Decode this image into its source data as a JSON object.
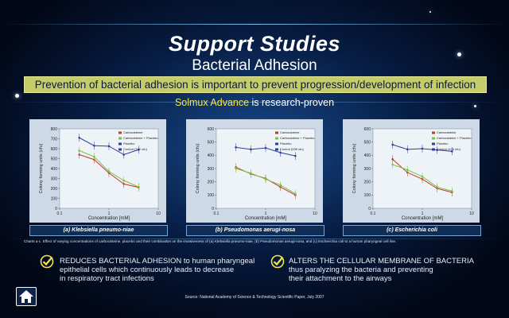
{
  "header": {
    "title": "Support Studies",
    "subtitle": "Bacterial Adhesion",
    "banner": "Prevention of bacterial adhesion is important to prevent progression/development of infection",
    "tagline_brand": "Solmux Advance",
    "tagline_rest": " is research-proven"
  },
  "chart_data": [
    {
      "type": "line",
      "title": "(a) Klebsiella pneumo-niae",
      "xlabel": "Concentration [mM]",
      "ylabel": "Colony forming units (cfu)",
      "xscale": "log",
      "xlim": [
        0.1,
        10
      ],
      "ylim": [
        0,
        800
      ],
      "yticks": [
        0,
        100,
        200,
        300,
        400,
        500,
        600,
        700,
        800
      ],
      "xticks": [
        "0.1",
        "1",
        "10"
      ],
      "legend_position": "top-right",
      "series": [
        {
          "name": "Carbocisteine",
          "color": "#c0392b",
          "x": [
            0.25,
            0.5,
            1,
            2,
            4
          ],
          "y": [
            540,
            490,
            355,
            245,
            210
          ]
        },
        {
          "name": "Carbocisteine + Placebo",
          "color": "#7cc242",
          "x": [
            0.25,
            0.5,
            1,
            2,
            4
          ],
          "y": [
            580,
            520,
            370,
            280,
            215
          ]
        },
        {
          "name": "Placebo",
          "color": "#2c3e9e",
          "x": [
            0.25,
            0.5,
            1,
            2,
            4
          ],
          "y": [
            710,
            630,
            625,
            540,
            590
          ]
        },
        {
          "name": "Control (742 cfu)",
          "color": "#2c3e9e",
          "x": [],
          "y": []
        }
      ]
    },
    {
      "type": "line",
      "title": "(b) Pseudomonas aerugi-nosa",
      "xlabel": "Concentration [mM]",
      "ylabel": "Colony forming units (cfu)",
      "xscale": "log",
      "xlim": [
        0.1,
        10
      ],
      "ylim": [
        0,
        600
      ],
      "yticks": [
        0,
        100,
        200,
        300,
        400,
        500,
        600
      ],
      "xticks": [
        "0.1",
        "1",
        "10"
      ],
      "legend_position": "top-right",
      "series": [
        {
          "name": "Carbocisteine",
          "color": "#c0392b",
          "x": [
            0.25,
            0.5,
            1,
            2,
            4
          ],
          "y": [
            310,
            260,
            225,
            160,
            100
          ]
        },
        {
          "name": "Carbocisteine + Placebo",
          "color": "#7cc242",
          "x": [
            0.25,
            0.5,
            1,
            2,
            4
          ],
          "y": [
            300,
            265,
            220,
            175,
            110
          ]
        },
        {
          "name": "Placebo",
          "color": "#2c3e9e",
          "x": [
            0.25,
            0.5,
            1,
            2,
            4
          ],
          "y": [
            460,
            445,
            455,
            420,
            395
          ]
        },
        {
          "name": "Control (539 cfu)",
          "color": "#2c3e9e",
          "x": [],
          "y": []
        }
      ]
    },
    {
      "type": "line",
      "title": "(c) Escherichia coli",
      "xlabel": "Concentration [mM]",
      "ylabel": "Colony forming units (cfu)",
      "xscale": "log",
      "xlim": [
        0.1,
        10
      ],
      "ylim": [
        0,
        600
      ],
      "yticks": [
        0,
        100,
        200,
        300,
        400,
        500,
        600
      ],
      "xticks": [
        "0.1",
        "1",
        "10"
      ],
      "legend_position": "top-right",
      "series": [
        {
          "name": "Carbocisteine",
          "color": "#c0392b",
          "x": [
            0.25,
            0.5,
            1,
            2,
            4
          ],
          "y": [
            370,
            270,
            220,
            150,
            120
          ]
        },
        {
          "name": "Carbocisteine + Placebo",
          "color": "#7cc242",
          "x": [
            0.25,
            0.5,
            1,
            2,
            4
          ],
          "y": [
            330,
            290,
            240,
            160,
            130
          ]
        },
        {
          "name": "Placebo",
          "color": "#2c3e9e",
          "x": [
            0.25,
            0.5,
            1,
            2,
            4
          ],
          "y": [
            480,
            445,
            450,
            440,
            430
          ]
        },
        {
          "name": "Control (475 cfu)",
          "color": "#2c3e9e",
          "x": [],
          "y": []
        }
      ]
    }
  ],
  "caption": "Charts a-c. Effect of varying concentrations of carbocisteine, placebo and their combination on the invasiveness of (a) Klebsiella pneumo-niae, (b) Pseudomonas aerugi-nosa, and (c) Escherichia coli to a human pharyngeal cell line.",
  "bullets": [
    {
      "highlight": "REDUCES BACTERIAL ADHESION",
      "rest_1": " to human pharyngeal",
      "line2": "epithelial cells which continuously leads to decrease",
      "line3": "in respiratory tract infections"
    },
    {
      "highlight": "ALTERS THE CELLULAR MEMBRANE OF BACTERIA",
      "rest_1": "",
      "line2": "thus paralyzing the bacteria and preventing",
      "line3": "their attachment to the airways"
    }
  ],
  "source": "Source: National Academy of Science & Technology Scientific Paper, July 2007",
  "icons": {
    "home": "home-icon",
    "check": "check-icon"
  }
}
